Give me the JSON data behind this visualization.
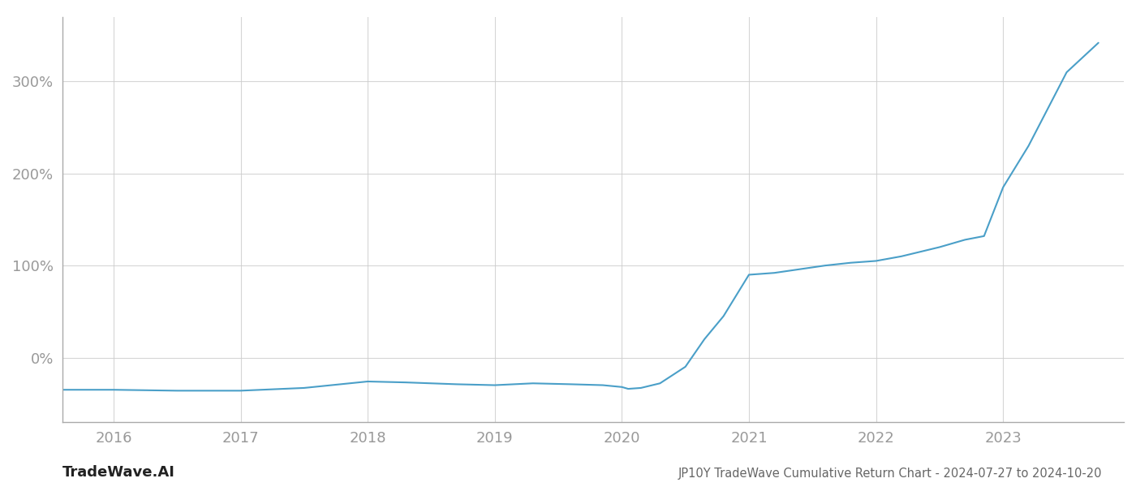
{
  "title": "JP10Y TradeWave Cumulative Return Chart - 2024-07-27 to 2024-10-20",
  "watermark_left": "TradeWave.AI",
  "line_color": "#4a9fc8",
  "background_color": "#ffffff",
  "grid_color": "#cccccc",
  "tick_label_color": "#999999",
  "xlim_start": 2015.6,
  "xlim_end": 2023.95,
  "ylim_min": -70,
  "ylim_max": 370,
  "yticks": [
    0,
    100,
    200,
    300
  ],
  "ytick_labels": [
    "0%",
    "100%",
    "200%",
    "300%"
  ],
  "xtick_years": [
    2016,
    2017,
    2018,
    2019,
    2020,
    2021,
    2022,
    2023
  ],
  "detailed_x": [
    2015.6,
    2016.0,
    2016.5,
    2017.0,
    2017.5,
    2018.0,
    2018.3,
    2018.7,
    2019.0,
    2019.3,
    2019.6,
    2019.85,
    2020.0,
    2020.05,
    2020.15,
    2020.3,
    2020.5,
    2020.65,
    2020.8,
    2021.0,
    2021.2,
    2021.4,
    2021.6,
    2021.8,
    2022.0,
    2022.2,
    2022.5,
    2022.7,
    2022.85,
    2023.0,
    2023.2,
    2023.5,
    2023.75
  ],
  "detailed_y": [
    -35,
    -35,
    -36,
    -36,
    -33,
    -26,
    -27,
    -29,
    -30,
    -28,
    -29,
    -30,
    -32,
    -34,
    -33,
    -28,
    -10,
    20,
    45,
    90,
    92,
    96,
    100,
    103,
    105,
    110,
    120,
    128,
    132,
    185,
    230,
    310,
    342
  ]
}
